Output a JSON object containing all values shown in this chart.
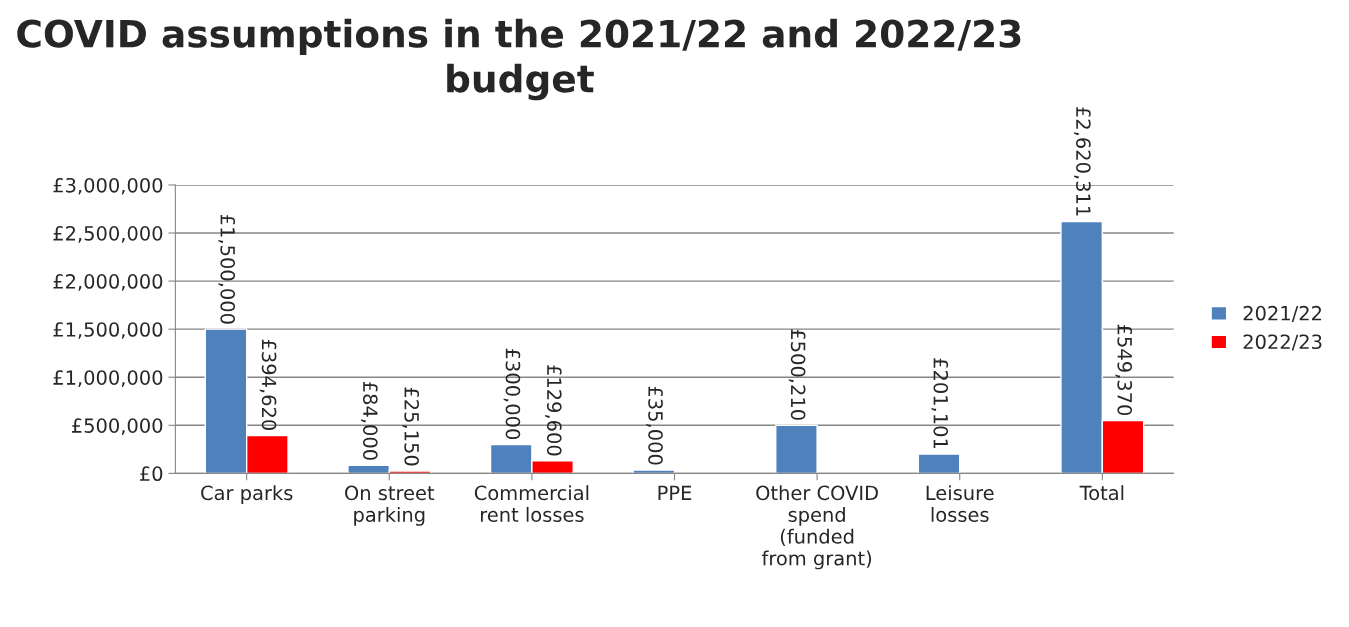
{
  "chart_data": {
    "type": "bar",
    "title": "COVID assumptions in the 2021/22 and 2022/23\nbudget",
    "categories": [
      "Car parks",
      "On street\nparking",
      "Commercial\nrent losses",
      "PPE",
      "Other COVID\nspend\n(funded\nfrom grant)",
      "Leisure\nlosses",
      "Total"
    ],
    "series": [
      {
        "name": "2021/22",
        "color": "#4f81bd",
        "values": [
          1500000,
          84000,
          300000,
          35000,
          500210,
          201101,
          2620311
        ],
        "value_labels": [
          "£1,500,000",
          "£84,000",
          "£300,000",
          "£35,000",
          "£500,210",
          "£201,101",
          "£2,620,311"
        ]
      },
      {
        "name": "2022/23",
        "color": "#ff0000",
        "values": [
          394620,
          25150,
          129600,
          null,
          null,
          null,
          549370
        ],
        "value_labels": [
          "£394,620",
          "£25,150",
          "£129,600",
          null,
          null,
          null,
          "£549,370"
        ]
      }
    ],
    "ylim": [
      0,
      3000000
    ],
    "yticks": [
      {
        "value": 0,
        "label": "£0"
      },
      {
        "value": 500000,
        "label": "£500,000"
      },
      {
        "value": 1000000,
        "label": "£1,000,000"
      },
      {
        "value": 1500000,
        "label": "£1,500,000"
      },
      {
        "value": 2000000,
        "label": "£2,000,000"
      },
      {
        "value": 2500000,
        "label": "£2,500,000"
      },
      {
        "value": 3000000,
        "label": "£3,000,000"
      }
    ],
    "grid": "y",
    "legend": "right"
  }
}
